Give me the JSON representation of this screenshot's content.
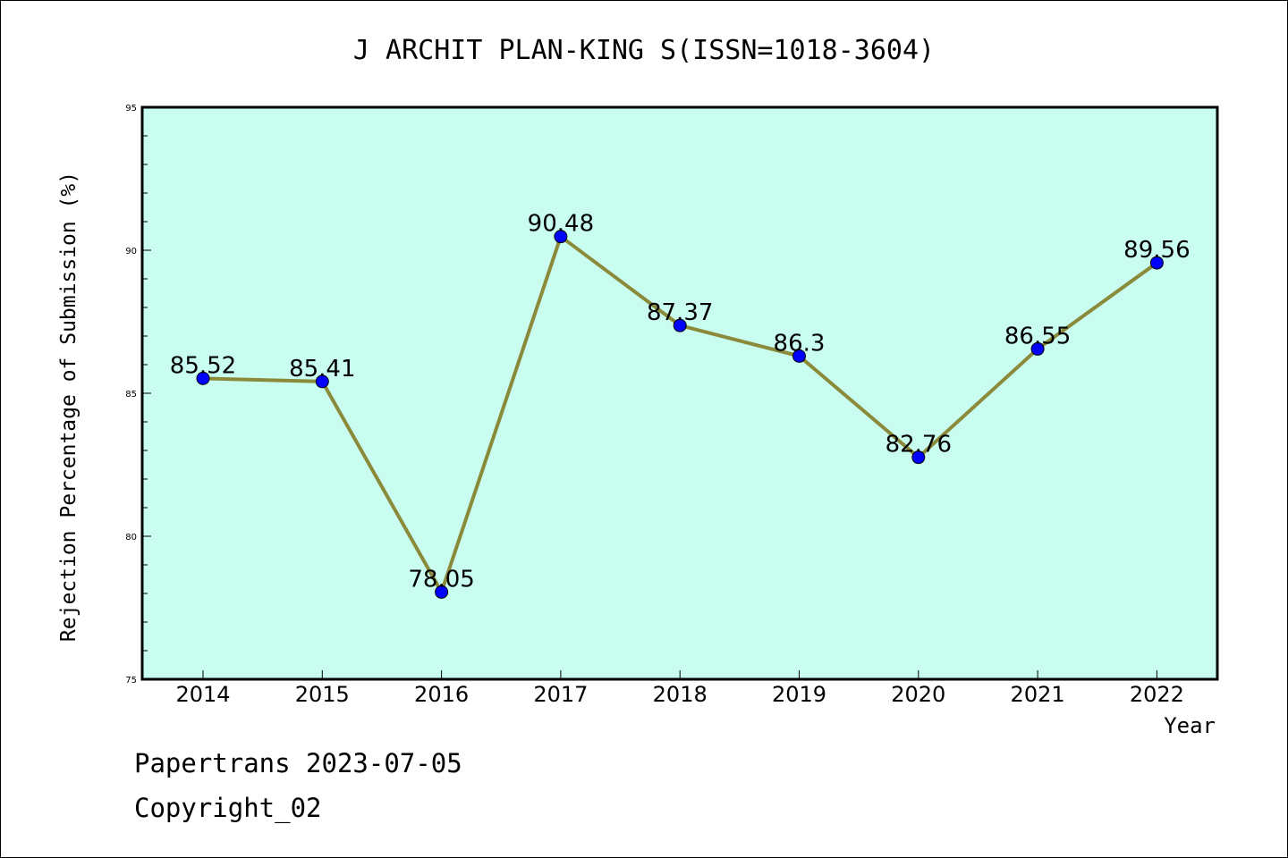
{
  "chart_data": {
    "type": "line",
    "title": "J ARCHIT PLAN-KING S(ISSN=1018-3604)",
    "xlabel": "Year",
    "ylabel": "Rejection Percentage of Submission (%)",
    "categories": [
      "2014",
      "2015",
      "2016",
      "2017",
      "2018",
      "2019",
      "2020",
      "2021",
      "2022"
    ],
    "values": [
      85.52,
      85.41,
      78.05,
      90.48,
      87.37,
      86.3,
      82.76,
      86.55,
      89.56
    ],
    "data_labels": [
      "85.52",
      "85.41",
      "78.05",
      "90.48",
      "87.37",
      "86.3",
      "82.76",
      "86.55",
      "89.56"
    ],
    "ylim": [
      75,
      95
    ],
    "yticks": [
      "75",
      "80",
      "85",
      "90",
      "95"
    ],
    "grid": false,
    "legend": "none",
    "colors": {
      "plot_background": "#c8fdef",
      "line": "#8b8a3a",
      "marker": "#0000ff"
    }
  },
  "footer": {
    "line1": "Papertrans 2023-07-05",
    "line2": "Copyright_02"
  }
}
